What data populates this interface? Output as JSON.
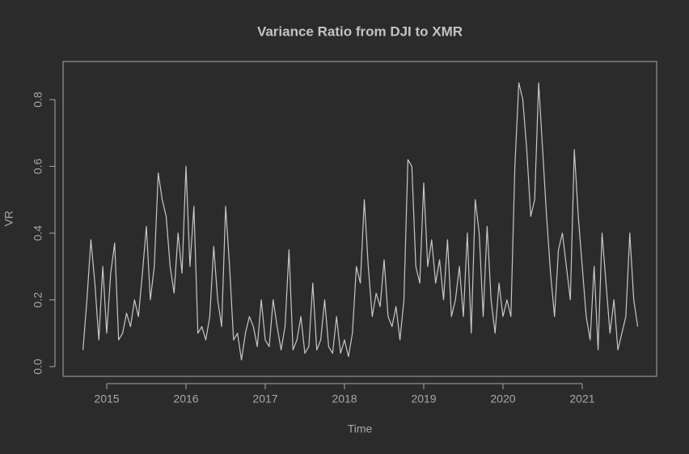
{
  "chart_data": {
    "type": "line",
    "title": "Variance Ratio from DJI to XMR",
    "x_label": "Time",
    "y_label": "VR",
    "color": "#c8c8c8",
    "x": [
      2014.7,
      2014.75,
      2014.8,
      2014.85,
      2014.9,
      2014.95,
      2015.0,
      2015.05,
      2015.1,
      2015.15,
      2015.2,
      2015.25,
      2015.3,
      2015.35,
      2015.4,
      2015.45,
      2015.5,
      2015.55,
      2015.6,
      2015.65,
      2015.7,
      2015.75,
      2015.8,
      2015.85,
      2015.9,
      2015.95,
      2016.0,
      2016.05,
      2016.1,
      2016.15,
      2016.2,
      2016.25,
      2016.3,
      2016.35,
      2016.4,
      2016.45,
      2016.5,
      2016.55,
      2016.6,
      2016.65,
      2016.7,
      2016.75,
      2016.8,
      2016.85,
      2016.9,
      2016.95,
      2017.0,
      2017.05,
      2017.1,
      2017.15,
      2017.2,
      2017.25,
      2017.3,
      2017.35,
      2017.4,
      2017.45,
      2017.5,
      2017.55,
      2017.6,
      2017.65,
      2017.7,
      2017.75,
      2017.8,
      2017.85,
      2017.9,
      2017.95,
      2018.0,
      2018.05,
      2018.1,
      2018.15,
      2018.2,
      2018.25,
      2018.3,
      2018.35,
      2018.4,
      2018.45,
      2018.5,
      2018.55,
      2018.6,
      2018.65,
      2018.7,
      2018.75,
      2018.8,
      2018.85,
      2018.9,
      2018.95,
      2019.0,
      2019.05,
      2019.1,
      2019.15,
      2019.2,
      2019.25,
      2019.3,
      2019.35,
      2019.4,
      2019.45,
      2019.5,
      2019.55,
      2019.6,
      2019.65,
      2019.7,
      2019.75,
      2019.8,
      2019.85,
      2019.9,
      2019.95,
      2020.0,
      2020.05,
      2020.1,
      2020.15,
      2020.2,
      2020.25,
      2020.3,
      2020.35,
      2020.4,
      2020.45,
      2020.5,
      2020.55,
      2020.6,
      2020.65,
      2020.7,
      2020.75,
      2020.8,
      2020.85,
      2020.9,
      2020.95,
      2021.0,
      2021.05,
      2021.1,
      2021.15,
      2021.2,
      2021.25,
      2021.3,
      2021.35,
      2021.4,
      2021.45,
      2021.5,
      2021.55,
      2021.6,
      2021.65,
      2021.7
    ],
    "values": [
      0.05,
      0.2,
      0.38,
      0.25,
      0.08,
      0.3,
      0.1,
      0.28,
      0.37,
      0.08,
      0.1,
      0.16,
      0.12,
      0.2,
      0.15,
      0.28,
      0.42,
      0.2,
      0.3,
      0.58,
      0.5,
      0.45,
      0.3,
      0.22,
      0.4,
      0.28,
      0.6,
      0.3,
      0.48,
      0.1,
      0.12,
      0.08,
      0.15,
      0.36,
      0.2,
      0.12,
      0.48,
      0.3,
      0.08,
      0.1,
      0.02,
      0.1,
      0.15,
      0.12,
      0.06,
      0.2,
      0.08,
      0.06,
      0.2,
      0.12,
      0.05,
      0.12,
      0.35,
      0.05,
      0.08,
      0.15,
      0.04,
      0.06,
      0.25,
      0.05,
      0.08,
      0.2,
      0.06,
      0.04,
      0.15,
      0.04,
      0.08,
      0.03,
      0.1,
      0.3,
      0.25,
      0.5,
      0.3,
      0.15,
      0.22,
      0.18,
      0.32,
      0.15,
      0.12,
      0.18,
      0.08,
      0.2,
      0.62,
      0.6,
      0.3,
      0.25,
      0.55,
      0.3,
      0.38,
      0.25,
      0.32,
      0.2,
      0.38,
      0.15,
      0.2,
      0.3,
      0.15,
      0.4,
      0.1,
      0.5,
      0.4,
      0.15,
      0.42,
      0.2,
      0.1,
      0.25,
      0.15,
      0.2,
      0.15,
      0.6,
      0.85,
      0.8,
      0.65,
      0.45,
      0.5,
      0.85,
      0.65,
      0.45,
      0.28,
      0.15,
      0.35,
      0.4,
      0.3,
      0.2,
      0.65,
      0.45,
      0.3,
      0.15,
      0.08,
      0.3,
      0.05,
      0.4,
      0.25,
      0.1,
      0.2,
      0.05,
      0.1,
      0.15,
      0.4,
      0.2,
      0.12
    ],
    "xlim": [
      2014.449,
      2021.939
    ],
    "xticks": [
      2015,
      2016,
      2017,
      2018,
      2019,
      2020,
      2021
    ],
    "ylim": [
      -0.029,
      0.914
    ],
    "yticks": [
      {
        "value": 0,
        "label": "0.0"
      },
      0.2,
      0.4,
      0.6,
      0.8
    ]
  }
}
